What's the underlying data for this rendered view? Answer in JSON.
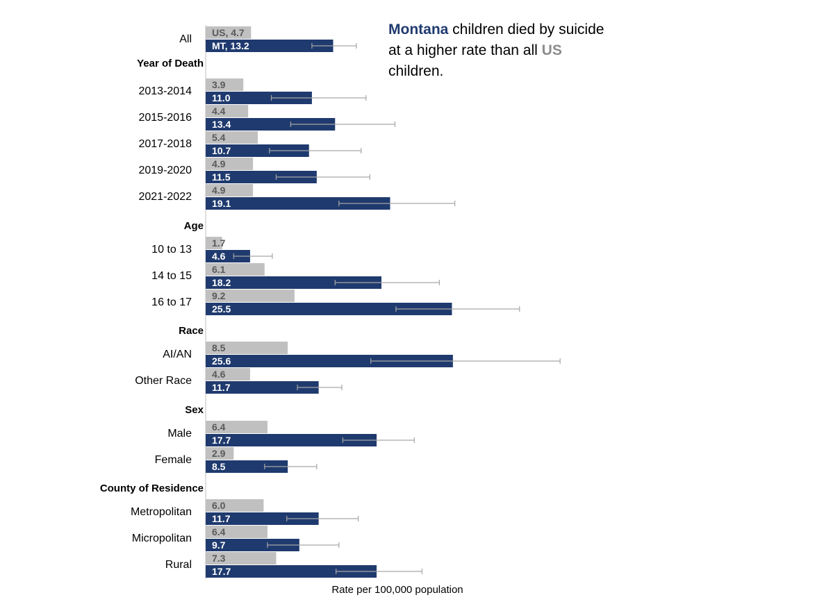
{
  "annotation": {
    "part1": "Montana",
    "part2": " children died by suicide at a higher rate than all ",
    "part3": "US",
    "part4": " children."
  },
  "colors": {
    "mt": "#1f3a6e",
    "us": "#c0c0c0",
    "us_text": "#595959",
    "error_bar": "#a6a6a6",
    "axis": "#bfbfbf"
  },
  "chart_data": {
    "type": "bar",
    "orientation": "horizontal",
    "xlabel": "Rate per 100,000 population",
    "xlim": [
      0,
      45
    ],
    "series": [
      {
        "name": "US",
        "color": "#c0c0c0"
      },
      {
        "name": "MT",
        "color": "#1f3a6e"
      }
    ],
    "rows": [
      {
        "kind": "category",
        "label": "All",
        "us": 4.7,
        "mt": 13.2,
        "us_label": "US, 4.7",
        "mt_label": "MT, 13.2",
        "mt_ci": [
          11.0,
          15.6
        ]
      },
      {
        "kind": "group",
        "label": "Year of Death"
      },
      {
        "kind": "category",
        "label": "2013-2014",
        "us": 3.9,
        "mt": 11.0,
        "us_label": "3.9",
        "mt_label": "11.0",
        "mt_ci": [
          6.8,
          16.6
        ]
      },
      {
        "kind": "category",
        "label": "2015-2016",
        "us": 4.4,
        "mt": 13.4,
        "us_label": "4.4",
        "mt_label": "13.4",
        "mt_ci": [
          8.8,
          19.6
        ]
      },
      {
        "kind": "category",
        "label": "2017-2018",
        "us": 5.4,
        "mt": 10.7,
        "us_label": "5.4",
        "mt_label": "10.7",
        "mt_ci": [
          6.6,
          16.1
        ]
      },
      {
        "kind": "category",
        "label": "2019-2020",
        "us": 4.9,
        "mt": 11.5,
        "us_label": "4.9",
        "mt_label": "11.5",
        "mt_ci": [
          7.3,
          17.0
        ]
      },
      {
        "kind": "category",
        "label": "2021-2022",
        "us": 4.9,
        "mt": 19.1,
        "us_label": "4.9",
        "mt_label": "19.1",
        "mt_ci": [
          13.8,
          25.8
        ]
      },
      {
        "kind": "group",
        "label": "Age"
      },
      {
        "kind": "category",
        "label": "10 to 13",
        "us": 1.7,
        "mt": 4.6,
        "us_label": "1.7",
        "mt_label": "4.6",
        "mt_ci": [
          2.9,
          6.9
        ]
      },
      {
        "kind": "category",
        "label": "14 to 15",
        "us": 6.1,
        "mt": 18.2,
        "us_label": "6.1",
        "mt_label": "18.2",
        "mt_ci": [
          13.4,
          24.2
        ]
      },
      {
        "kind": "category",
        "label": "16 to 17",
        "us": 9.2,
        "mt": 25.5,
        "us_label": "9.2",
        "mt_label": "25.5",
        "mt_ci": [
          19.7,
          32.5
        ]
      },
      {
        "kind": "group",
        "label": "Race"
      },
      {
        "kind": "category",
        "label": "AI/AN",
        "us": 8.5,
        "mt": 25.6,
        "us_label": "8.5",
        "mt_label": "25.6",
        "mt_ci": [
          17.1,
          36.7
        ]
      },
      {
        "kind": "category",
        "label": "Other Race",
        "us": 4.6,
        "mt": 11.7,
        "us_label": "4.6",
        "mt_label": "11.7",
        "mt_ci": [
          9.5,
          14.1
        ]
      },
      {
        "kind": "group",
        "label": "Sex"
      },
      {
        "kind": "category",
        "label": "Male",
        "us": 6.4,
        "mt": 17.7,
        "us_label": "6.4",
        "mt_label": "17.7",
        "mt_ci": [
          14.2,
          21.6
        ]
      },
      {
        "kind": "category",
        "label": "Female",
        "us": 2.9,
        "mt": 8.5,
        "us_label": "2.9",
        "mt_label": "8.5",
        "mt_ci": [
          6.1,
          11.5
        ]
      },
      {
        "kind": "group",
        "label": "County of Residence"
      },
      {
        "kind": "category",
        "label": "Metropolitan",
        "us": 6.0,
        "mt": 11.7,
        "us_label": "6.0",
        "mt_label": "11.7",
        "mt_ci": [
          8.4,
          15.8
        ]
      },
      {
        "kind": "category",
        "label": "Micropolitan",
        "us": 6.4,
        "mt": 9.7,
        "us_label": "6.4",
        "mt_label": "9.7",
        "mt_ci": [
          6.4,
          13.8
        ]
      },
      {
        "kind": "category",
        "label": "Rural",
        "us": 7.3,
        "mt": 17.7,
        "us_label": "7.3",
        "mt_label": "17.7",
        "mt_ci": [
          13.5,
          22.4
        ]
      }
    ]
  }
}
